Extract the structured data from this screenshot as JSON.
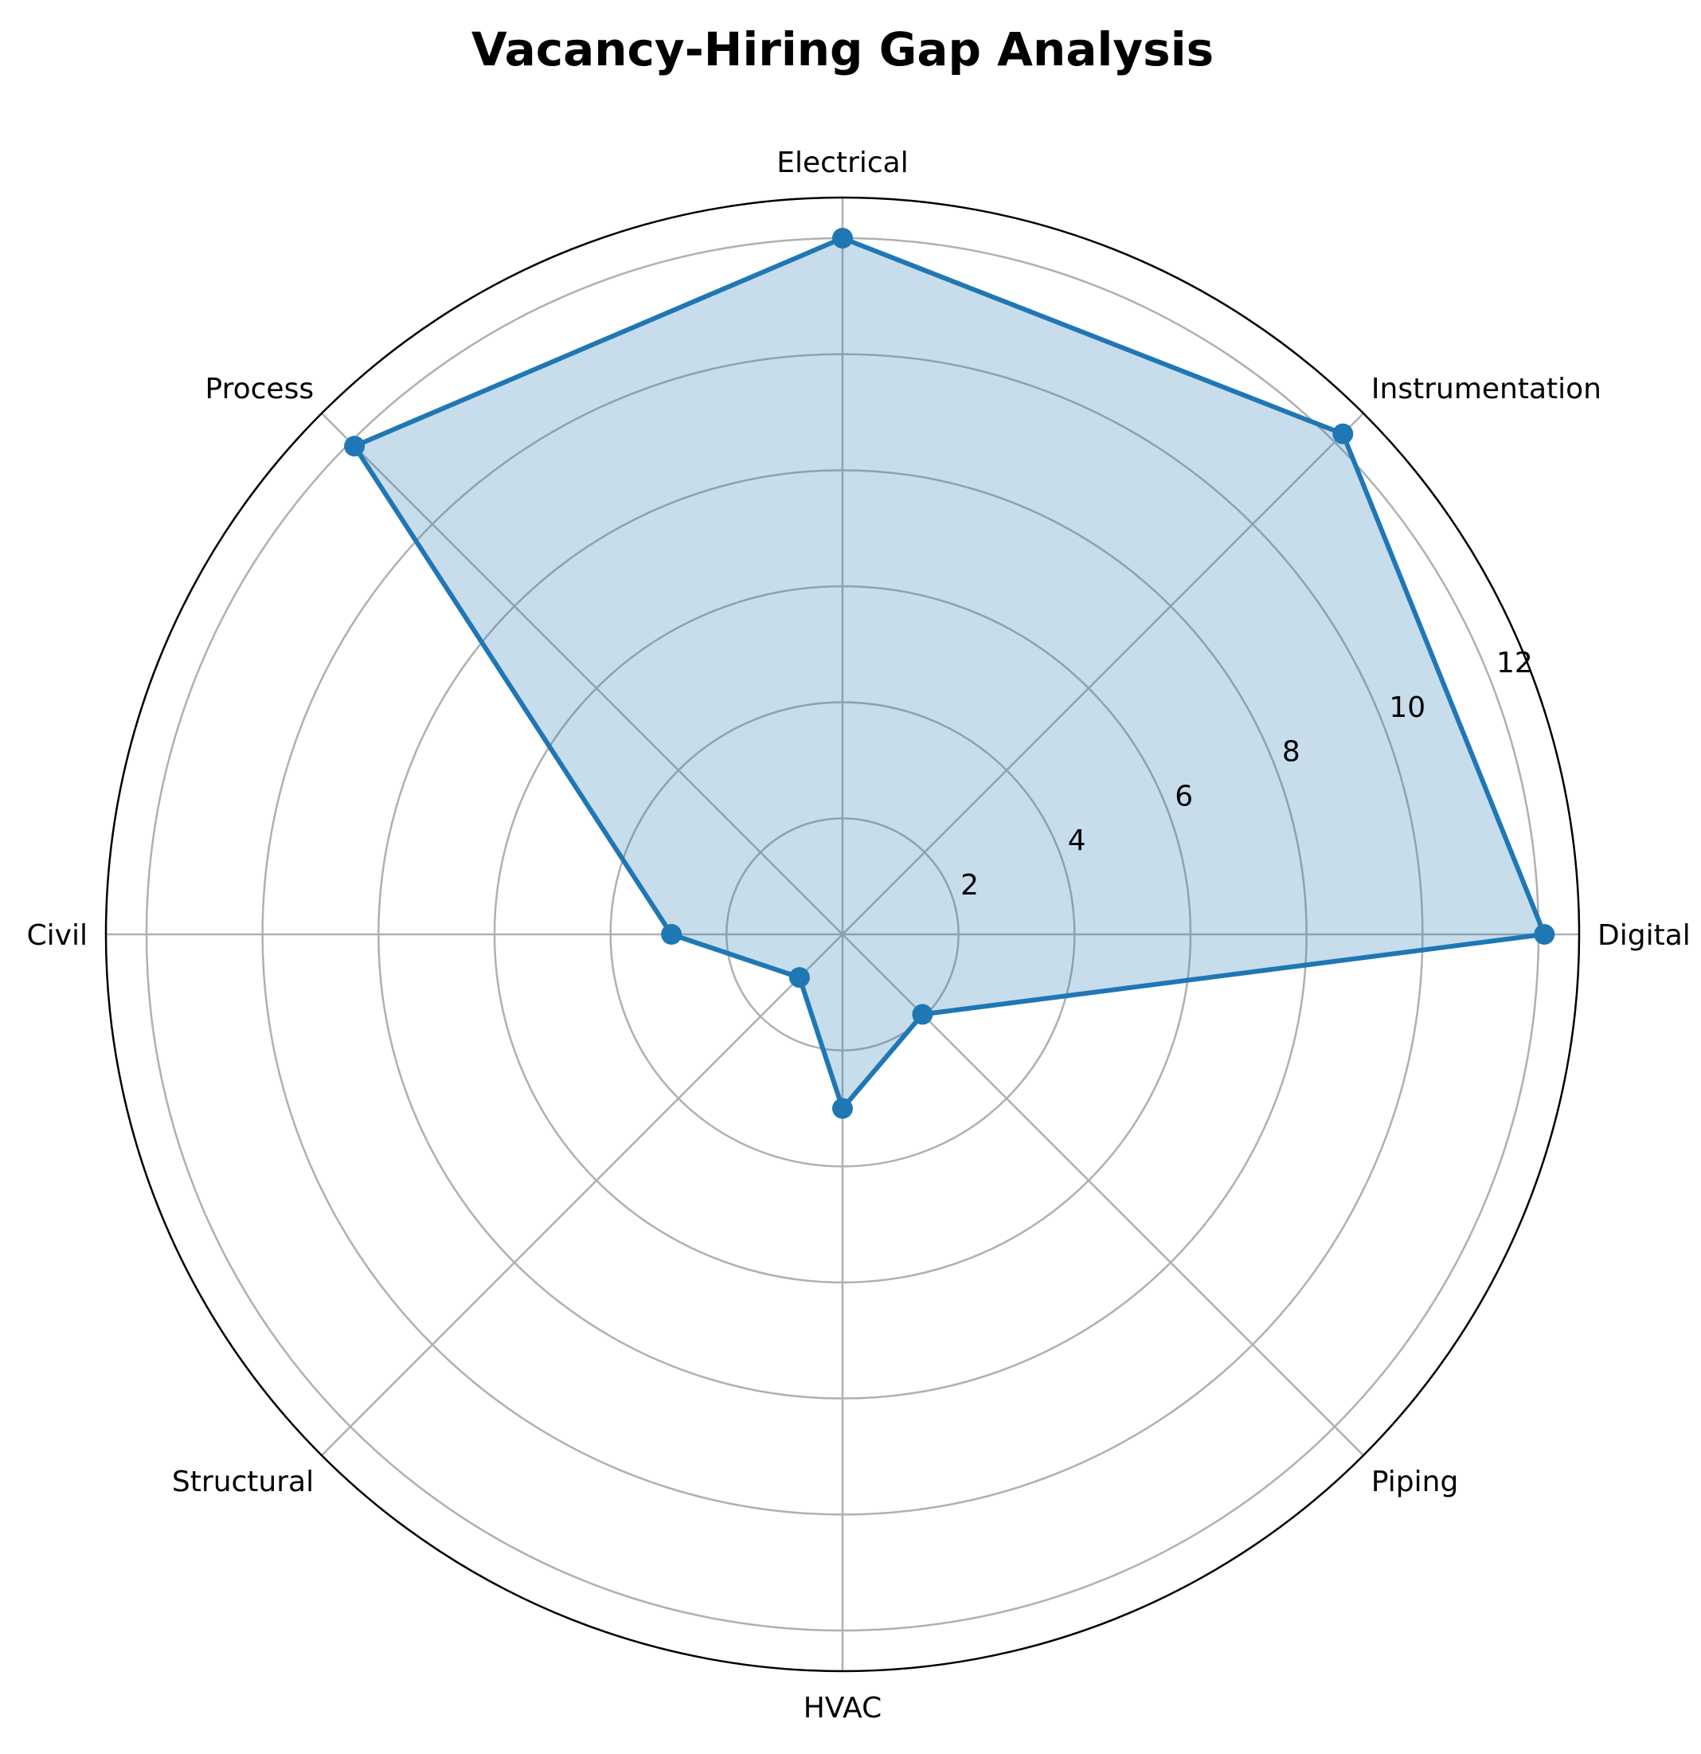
{
  "chart_data": {
    "type": "radar",
    "title": "Vacancy-Hiring Gap Analysis",
    "categories": [
      "Digital",
      "Instrumentation",
      "Electrical",
      "Process",
      "Civil",
      "Structural",
      "HVAC",
      "Piping"
    ],
    "series": [
      {
        "values": [
          12.1,
          12.2,
          12.0,
          11.9,
          2.95,
          1.05,
          3.0,
          1.95
        ]
      }
    ],
    "rlim": [
      0,
      12.7
    ],
    "r_ticks": [
      2,
      4,
      6,
      8,
      10,
      12
    ],
    "r_tick_labels": [
      "2",
      "4",
      "6",
      "8",
      "10",
      "12"
    ],
    "grid": true,
    "colors": {
      "line": "#1f77b4",
      "fill": "#1f77b4",
      "grid": "#b0b0b0",
      "frame": "#000000"
    }
  }
}
